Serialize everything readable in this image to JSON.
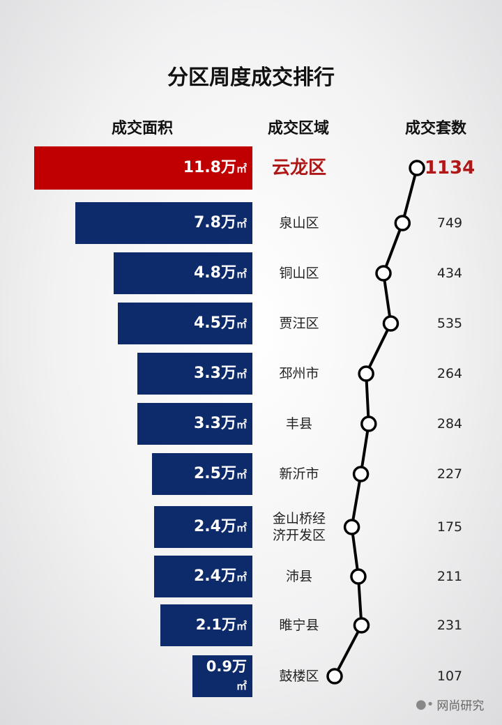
{
  "chart_data": {
    "type": "bar",
    "title": "分区周度成交排行",
    "column_headers": [
      "成交面积",
      "成交区域",
      "成交套数"
    ],
    "unit": "万㎡",
    "categories": [
      "云龙区",
      "泉山区",
      "铜山区",
      "贾汪区",
      "邳州市",
      "丰县",
      "新沂市",
      "金山桥经济开发区",
      "沛县",
      "睢宁县",
      "鼓楼区"
    ],
    "category_labels": [
      "云龙区",
      "泉山区",
      "铜山区",
      "贾汪区",
      "邳州市",
      "丰县",
      "新沂市",
      "金山桥经\n济开发区",
      "沛县",
      "睢宁县",
      "鼓楼区"
    ],
    "series": [
      {
        "name": "成交面积",
        "type": "bar",
        "values": [
          11.8,
          7.8,
          4.8,
          4.5,
          3.3,
          3.3,
          2.5,
          2.4,
          2.4,
          2.1,
          0.9
        ]
      },
      {
        "name": "成交套数",
        "type": "line",
        "values": [
          1134,
          749,
          434,
          535,
          264,
          284,
          227,
          175,
          211,
          231,
          107
        ]
      }
    ],
    "highlight_index": 0,
    "colors": {
      "highlight": "#c00000",
      "bar": "#0d2a6b",
      "line": "#000000",
      "highlight_text": "#b01818"
    }
  },
  "watermark": {
    "text": "网尚研究",
    "icon": "wechat-icon"
  }
}
